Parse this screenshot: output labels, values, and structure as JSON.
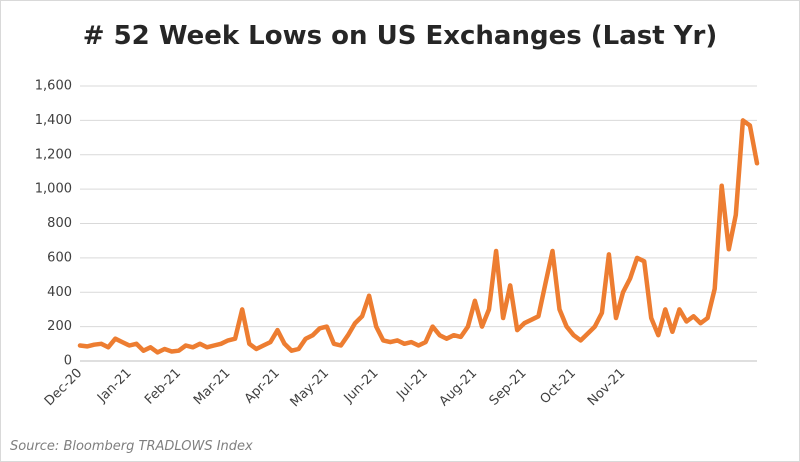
{
  "chart_data": {
    "type": "line",
    "title": "# 52 Week Lows on US Exchanges (Last Yr)",
    "source": "Source: Bloomberg TRADLOWS Index",
    "categories": [
      "Dec-20",
      null,
      null,
      null,
      null,
      null,
      null,
      "Jan-21",
      null,
      null,
      null,
      null,
      null,
      null,
      "Feb-21",
      null,
      null,
      null,
      null,
      null,
      null,
      "Mar-21",
      null,
      null,
      null,
      null,
      null,
      null,
      "Apr-21",
      null,
      null,
      null,
      null,
      null,
      null,
      "May-21",
      null,
      null,
      null,
      null,
      null,
      null,
      "Jun-21",
      null,
      null,
      null,
      null,
      null,
      null,
      "Jul-21",
      null,
      null,
      null,
      null,
      null,
      null,
      "Aug-21",
      null,
      null,
      null,
      null,
      null,
      null,
      "Sep-21",
      null,
      null,
      null,
      null,
      null,
      null,
      "Oct-21",
      null,
      null,
      null,
      null,
      null,
      null,
      "Nov-21",
      null,
      null,
      null,
      null,
      null,
      null,
      null,
      null,
      null,
      null,
      null,
      null,
      null,
      null,
      null,
      null,
      null,
      null,
      null
    ],
    "series": [
      {
        "name": "52 Week Lows",
        "color": "#ED7D31",
        "values": [
          90,
          85,
          95,
          100,
          80,
          130,
          110,
          90,
          100,
          60,
          80,
          50,
          70,
          55,
          60,
          90,
          80,
          100,
          80,
          90,
          100,
          120,
          130,
          300,
          100,
          70,
          90,
          110,
          180,
          100,
          60,
          70,
          130,
          150,
          190,
          200,
          100,
          90,
          150,
          220,
          260,
          380,
          200,
          120,
          110,
          120,
          100,
          110,
          90,
          110,
          200,
          150,
          130,
          150,
          140,
          200,
          350,
          200,
          300,
          640,
          250,
          440,
          180,
          220,
          240,
          260,
          450,
          640,
          300,
          200,
          150,
          120,
          160,
          200,
          280,
          620,
          250,
          400,
          480,
          600,
          580,
          250,
          150,
          300,
          170,
          300,
          230,
          260,
          220,
          250,
          420,
          1020,
          650,
          850,
          1400,
          1370,
          1150
        ]
      }
    ],
    "ylim": [
      0,
      1600
    ],
    "yticks": [
      0,
      200,
      400,
      600,
      800,
      {
        "value": 1000,
        "label": "1,000"
      },
      {
        "value": 1200,
        "label": "1,200"
      },
      {
        "value": 1400,
        "label": "1,400"
      },
      {
        "value": 1600,
        "label": "1,600"
      }
    ],
    "grid": true
  }
}
